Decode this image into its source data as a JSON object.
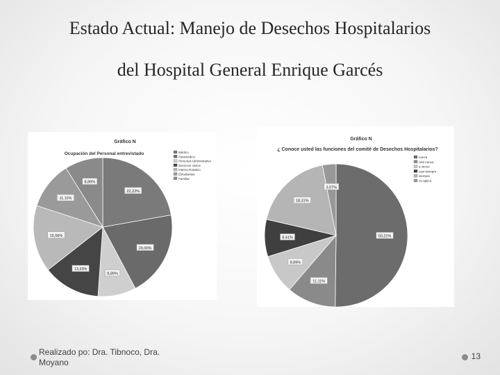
{
  "slide": {
    "title_line1": "Estado Actual: Manejo de Desechos Hospitalarios",
    "title_line2": "del Hospital General Enrique Garcés",
    "footer": "Realizado po:  Dra. Tibnoco, Dra. Moyano",
    "page_number": "13"
  },
  "chart_data": [
    {
      "type": "pie",
      "caption": "Gráfico N",
      "title": "Ocupación del Personal entrevistado",
      "categories": [
        "Médico",
        "Paramédico",
        "Personal Administrativo",
        "Servicios Varios",
        "Interno Rotativo",
        "Estudiantes",
        "Familiar"
      ],
      "values": [
        22.22,
        20.0,
        8.89,
        13.33,
        15.56,
        11.11,
        8.89
      ],
      "labels": [
        "22,22%",
        "20,00%",
        "8,89%",
        "13,33%",
        "15,56%",
        "11,11%",
        "8,89%"
      ],
      "colors": [
        "#7a7a7a",
        "#6a6a6a",
        "#cfcfcf",
        "#454545",
        "#b9b9b9",
        "#9a9a9a",
        "#8a8a8a"
      ],
      "legend_position": "right"
    },
    {
      "type": "pie",
      "caption": "Gráfico N",
      "title": "¿ Conoce usted las funciones del comité de Desechos Hospitalarios?",
      "categories": [
        "nunca",
        "casi nunca",
        "a veces",
        "casi siempre",
        "siempre",
        "no aplica"
      ],
      "values": [
        50.21,
        11.11,
        8.89,
        8.41,
        18.31,
        3.07
      ],
      "labels": [
        "50,21%",
        "11,11%",
        "8,89%",
        "8,41%",
        "18,31%",
        "3,07%"
      ],
      "colors": [
        "#6c6c6c",
        "#8a8a8a",
        "#c8c8c8",
        "#3f3f3f",
        "#b5b5b5",
        "#989898"
      ],
      "legend_position": "top-right"
    }
  ]
}
